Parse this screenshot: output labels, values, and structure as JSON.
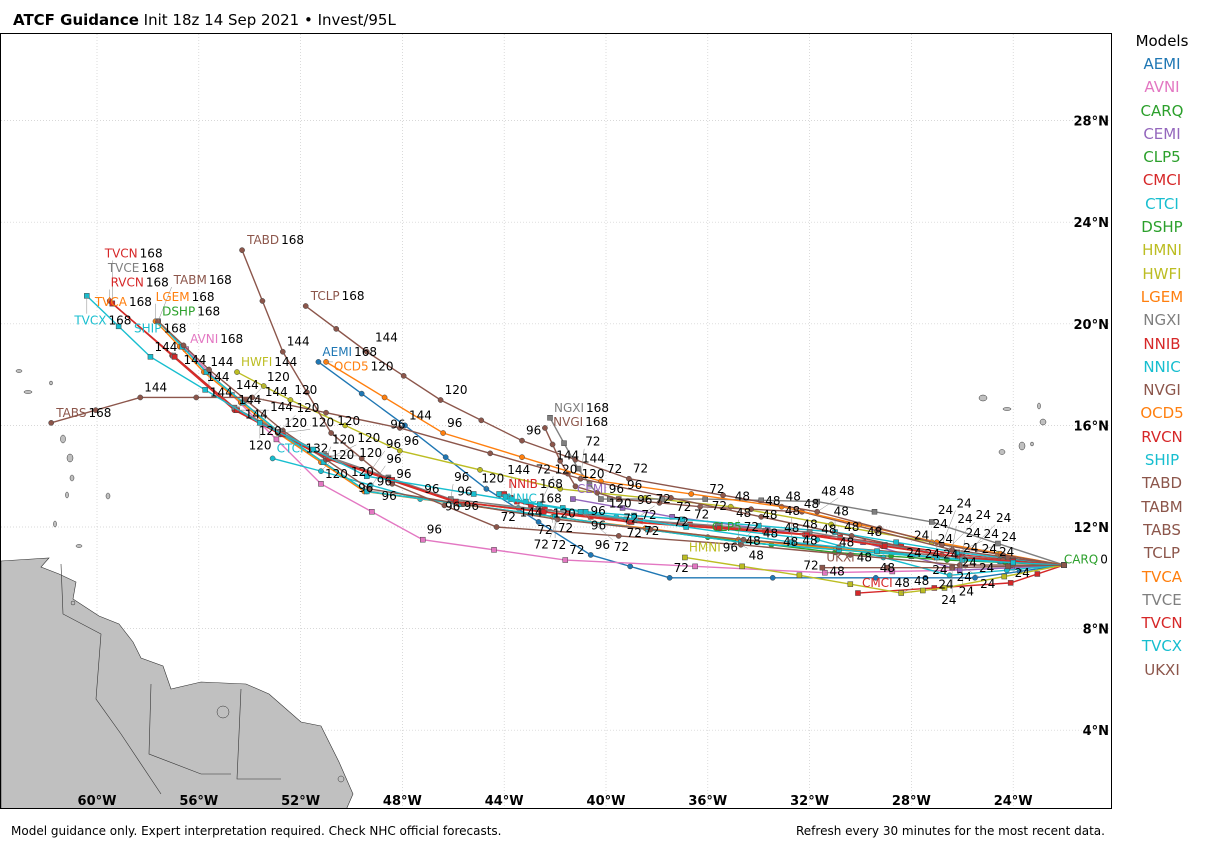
{
  "header": {
    "title": "ATCF Guidance",
    "subtitle": "Init 18z 14 Sep 2021 • Invest/95L"
  },
  "footer": {
    "left": "Model guidance only. Expert interpretation required. Check NHC official forecasts.",
    "right": "Refresh every 30 minutes for the most recent data."
  },
  "legend": {
    "title": "Models"
  },
  "axes": {
    "lon_ticks": [
      "60°W",
      "56°W",
      "52°W",
      "48°W",
      "44°W",
      "40°W",
      "36°W",
      "32°W",
      "28°W",
      "24°W"
    ],
    "lon_values": [
      -60,
      -56,
      -52,
      -48,
      -44,
      -40,
      -36,
      -32,
      -28,
      -24
    ],
    "lat_ticks": [
      "4°N",
      "8°N",
      "12°N",
      "16°N",
      "20°N",
      "24°N",
      "28°N"
    ],
    "lat_values": [
      4,
      8,
      12,
      16,
      20,
      24,
      28
    ],
    "lon_range": [
      -63.8,
      -20.1
    ],
    "lat_range": [
      0.9,
      31.4
    ]
  },
  "land_color": "#c0c0c0",
  "models": [
    {
      "name": "AEMI",
      "color": "#1f77b4",
      "marker": "circle",
      "track": [
        [
          0,
          10.5,
          -22.0
        ],
        [
          24,
          10.0,
          -25.5
        ],
        [
          48,
          10.0,
          -29.4
        ],
        [
          72,
          10.0,
          -37.5
        ],
        [
          96,
          10.9,
          -40.6
        ],
        [
          120,
          13.5,
          -44.7
        ],
        [
          144,
          16.0,
          -47.9
        ],
        [
          168,
          18.5,
          -51.3
        ]
      ]
    },
    {
      "name": "AVNI",
      "color": "#e377c2",
      "marker": "square",
      "track": [
        [
          0,
          10.5,
          -22.0
        ],
        [
          24,
          10.3,
          -26.1
        ],
        [
          48,
          10.2,
          -31.4
        ],
        [
          72,
          10.7,
          -41.6
        ],
        [
          96,
          11.5,
          -47.2
        ],
        [
          120,
          13.7,
          -51.2
        ],
        [
          144,
          17.2,
          -54.7
        ],
        [
          168,
          19.0,
          -56.5
        ]
      ]
    },
    {
      "name": "CARQ",
      "color": "#2ca02c",
      "marker": "square",
      "track": [
        [
          0,
          10.5,
          -22.0
        ]
      ]
    },
    {
      "name": "CEMI",
      "color": "#9467bd",
      "marker": "square",
      "track": [
        [
          0,
          10.5,
          -22.0
        ],
        [
          24,
          10.3,
          -26.1
        ],
        [
          48,
          11.4,
          -29.9
        ],
        [
          72,
          12.4,
          -37.4
        ],
        [
          96,
          13.1,
          -41.3
        ]
      ]
    },
    {
      "name": "CLP5",
      "color": "#2ca02c",
      "marker": "circle",
      "track": [
        [
          0,
          10.5,
          -22.0
        ],
        [
          24,
          10.7,
          -26.6
        ],
        [
          48,
          11.0,
          -31.0
        ],
        [
          72,
          11.6,
          -36.0
        ]
      ]
    },
    {
      "name": "CMCI",
      "color": "#d62728",
      "marker": "square",
      "track": [
        [
          0,
          10.5,
          -22.0
        ],
        [
          24,
          9.8,
          -24.1
        ],
        [
          48,
          9.4,
          -30.1
        ]
      ]
    },
    {
      "name": "CTCI",
      "color": "#17becf",
      "marker": "circle",
      "track": [
        [
          0,
          10.5,
          -22.0
        ],
        [
          24,
          10.1,
          -26.5
        ],
        [
          48,
          11.5,
          -31.7
        ],
        [
          72,
          12.4,
          -39.6
        ],
        [
          96,
          13.1,
          -47.3
        ],
        [
          120,
          14.2,
          -51.2
        ],
        [
          132,
          14.7,
          -53.1
        ]
      ]
    },
    {
      "name": "DSHP",
      "color": "#2ca02c",
      "marker": "circle",
      "track": [
        [
          0,
          10.5,
          -22.0
        ],
        [
          24,
          10.8,
          -27.0
        ],
        [
          48,
          11.4,
          -34.7
        ],
        [
          72,
          12.4,
          -42.0
        ],
        [
          96,
          13.4,
          -49.4
        ],
        [
          120,
          15.7,
          -52.8
        ],
        [
          144,
          18.1,
          -55.7
        ],
        [
          168,
          20.1,
          -57.6
        ]
      ]
    },
    {
      "name": "HMNI",
      "color": "#bcbd22",
      "marker": "square",
      "track": [
        [
          0,
          10.5,
          -22.0
        ],
        [
          24,
          9.6,
          -26.7
        ],
        [
          48,
          9.4,
          -28.4
        ],
        [
          72,
          10.1,
          -32.4
        ],
        [
          96,
          10.8,
          -36.9
        ]
      ]
    },
    {
      "name": "HWFI",
      "color": "#bcbd22",
      "marker": "circle",
      "track": [
        [
          0,
          10.5,
          -22.0
        ],
        [
          24,
          11.4,
          -27.2
        ],
        [
          48,
          12.8,
          -35.1
        ],
        [
          72,
          13.5,
          -41.8
        ],
        [
          96,
          15.0,
          -48.1
        ],
        [
          120,
          17.0,
          -52.4
        ],
        [
          144,
          18.1,
          -54.5
        ]
      ]
    },
    {
      "name": "LGEM",
      "color": "#ff7f0e",
      "marker": "circle",
      "track": [
        [
          0,
          10.5,
          -22.0
        ],
        [
          24,
          10.8,
          -27.1
        ],
        [
          48,
          11.5,
          -34.8
        ],
        [
          72,
          12.4,
          -42.1
        ],
        [
          96,
          13.4,
          -49.5
        ],
        [
          120,
          15.7,
          -52.9
        ],
        [
          144,
          18.1,
          -55.8
        ],
        [
          168,
          20.1,
          -57.7
        ]
      ]
    },
    {
      "name": "NGXI",
      "color": "#7f7f7f",
      "marker": "square",
      "track": [
        [
          0,
          10.5,
          -22.0
        ],
        [
          24,
          12.2,
          -27.2
        ],
        [
          48,
          13.0,
          -31.7
        ],
        [
          72,
          13.1,
          -36.1
        ],
        [
          96,
          13.1,
          -39.5
        ],
        [
          120,
          13.1,
          -40.2
        ],
        [
          144,
          14.3,
          -41.1
        ],
        [
          168,
          16.3,
          -42.2
        ]
      ]
    },
    {
      "name": "NNIB",
      "color": "#d62728",
      "marker": "square",
      "track": [
        [
          0,
          10.5,
          -22.0
        ],
        [
          24,
          10.9,
          -26.0
        ],
        [
          48,
          11.6,
          -30.8
        ],
        [
          72,
          12.1,
          -36.7
        ],
        [
          96,
          12.4,
          -40.6
        ],
        [
          120,
          12.7,
          -42.4
        ],
        [
          144,
          13.0,
          -43.5
        ],
        [
          168,
          13.3,
          -44.0
        ]
      ]
    },
    {
      "name": "NNIC",
      "color": "#17becf",
      "marker": "square",
      "track": [
        [
          0,
          10.5,
          -22.0
        ],
        [
          24,
          11.0,
          -26.2
        ],
        [
          48,
          11.8,
          -31.0
        ],
        [
          72,
          12.3,
          -37.0
        ],
        [
          96,
          12.6,
          -40.8
        ],
        [
          120,
          12.9,
          -42.6
        ],
        [
          144,
          13.1,
          -43.7
        ],
        [
          168,
          13.3,
          -44.2
        ]
      ]
    },
    {
      "name": "NVGI",
      "color": "#8c564b",
      "marker": "circle",
      "track": [
        [
          0,
          10.5,
          -22.0
        ],
        [
          24,
          11.1,
          -26.4
        ],
        [
          48,
          12.6,
          -32.3
        ],
        [
          72,
          12.8,
          -36.3
        ],
        [
          96,
          13.1,
          -39.5
        ],
        [
          120,
          13.6,
          -41.2
        ],
        [
          144,
          14.6,
          -41.8
        ],
        [
          168,
          15.9,
          -42.4
        ]
      ]
    },
    {
      "name": "OCD5",
      "color": "#ff7f0e",
      "marker": "circle",
      "track": [
        [
          0,
          10.5,
          -22.0
        ],
        [
          24,
          11.4,
          -27.0
        ],
        [
          48,
          12.8,
          -33.1
        ],
        [
          72,
          13.8,
          -40.2
        ],
        [
          96,
          15.7,
          -46.4
        ],
        [
          120,
          18.5,
          -51.0
        ]
      ]
    },
    {
      "name": "RVCN",
      "color": "#d62728",
      "marker": "circle",
      "track": [
        [
          0,
          10.5,
          -22.0
        ],
        [
          24,
          10.8,
          -26.1
        ],
        [
          48,
          11.7,
          -32.2
        ],
        [
          72,
          12.2,
          -39.1
        ],
        [
          96,
          13.0,
          -46.0
        ],
        [
          120,
          14.7,
          -51.0
        ],
        [
          144,
          16.6,
          -54.6
        ],
        [
          168,
          20.9,
          -59.5
        ]
      ]
    },
    {
      "name": "SHIP",
      "color": "#17becf",
      "marker": "square",
      "track": [
        [
          0,
          10.5,
          -22.0
        ],
        [
          24,
          10.8,
          -27.0
        ],
        [
          48,
          11.4,
          -34.7
        ],
        [
          72,
          12.4,
          -42.0
        ],
        [
          96,
          13.4,
          -49.4
        ],
        [
          120,
          15.7,
          -52.8
        ],
        [
          144,
          18.1,
          -55.7
        ],
        [
          168,
          20.1,
          -57.6
        ]
      ]
    },
    {
      "name": "TABD",
      "color": "#8c564b",
      "marker": "circle",
      "track": [
        [
          0,
          10.5,
          -22.0
        ],
        [
          24,
          10.5,
          -26.1
        ],
        [
          48,
          11.3,
          -34.7
        ],
        [
          72,
          12.0,
          -44.3
        ],
        [
          96,
          13.7,
          -48.4
        ],
        [
          120,
          15.7,
          -50.8
        ],
        [
          144,
          18.9,
          -52.7
        ],
        [
          168,
          22.9,
          -54.3
        ]
      ]
    },
    {
      "name": "TABM",
      "color": "#8c564b",
      "marker": "circle",
      "track": [
        [
          0,
          10.5,
          -22.0
        ],
        [
          24,
          10.9,
          -27.1
        ],
        [
          48,
          11.5,
          -34.6
        ],
        [
          72,
          12.3,
          -41.9
        ],
        [
          96,
          13.5,
          -49.3
        ],
        [
          120,
          15.8,
          -52.7
        ],
        [
          144,
          18.2,
          -55.6
        ],
        [
          168,
          20.1,
          -57.6
        ]
      ]
    },
    {
      "name": "TABS",
      "color": "#8c564b",
      "marker": "circle",
      "track": [
        [
          0,
          10.5,
          -22.0
        ],
        [
          24,
          10.9,
          -26.8
        ],
        [
          48,
          12.4,
          -33.9
        ],
        [
          72,
          13.9,
          -41.0
        ],
        [
          96,
          15.9,
          -48.1
        ],
        [
          120,
          17.1,
          -53.9
        ],
        [
          144,
          17.1,
          -58.3
        ],
        [
          168,
          16.1,
          -61.8
        ]
      ]
    },
    {
      "name": "TCLP",
      "color": "#8c564b",
      "marker": "circle",
      "track": [
        [
          0,
          10.5,
          -22.0
        ],
        [
          24,
          11.3,
          -26.8
        ],
        [
          48,
          12.6,
          -31.7
        ],
        [
          72,
          13.9,
          -39.1
        ],
        [
          96,
          15.4,
          -43.3
        ],
        [
          120,
          17.0,
          -46.5
        ],
        [
          144,
          18.9,
          -49.4
        ],
        [
          168,
          20.7,
          -51.8
        ]
      ]
    },
    {
      "name": "TVCA",
      "color": "#ff7f0e",
      "marker": "square",
      "track": [
        [
          0,
          10.5,
          -22.0
        ],
        [
          24,
          10.8,
          -26.0
        ],
        [
          48,
          11.7,
          -32.1
        ],
        [
          72,
          12.2,
          -39.0
        ],
        [
          96,
          13.0,
          -45.9
        ],
        [
          120,
          14.7,
          -50.9
        ],
        [
          144,
          16.6,
          -54.5
        ],
        [
          168,
          20.8,
          -59.4
        ]
      ]
    },
    {
      "name": "TVCE",
      "color": "#7f7f7f",
      "marker": "square",
      "track": [
        [
          0,
          10.5,
          -22.0
        ],
        [
          24,
          10.8,
          -26.1
        ],
        [
          48,
          11.8,
          -32.0
        ],
        [
          72,
          12.3,
          -39.2
        ],
        [
          96,
          13.1,
          -46.1
        ],
        [
          120,
          14.8,
          -51.0
        ],
        [
          144,
          16.7,
          -54.6
        ],
        [
          168,
          20.8,
          -59.4
        ]
      ]
    },
    {
      "name": "TVCN",
      "color": "#d62728",
      "marker": "square",
      "track": [
        [
          0,
          10.5,
          -22.0
        ],
        [
          24,
          10.8,
          -26.0
        ],
        [
          48,
          11.7,
          -32.1
        ],
        [
          72,
          12.2,
          -39.0
        ],
        [
          96,
          13.0,
          -45.9
        ],
        [
          120,
          14.7,
          -50.9
        ],
        [
          144,
          16.6,
          -54.5
        ],
        [
          168,
          20.8,
          -59.4
        ]
      ]
    },
    {
      "name": "TVCX",
      "color": "#17becf",
      "marker": "square",
      "track": [
        [
          0,
          10.5,
          -22.0
        ],
        [
          24,
          10.7,
          -26.0
        ],
        [
          48,
          11.4,
          -32.7
        ],
        [
          72,
          12.6,
          -41.0
        ],
        [
          96,
          14.0,
          -49.4
        ],
        [
          120,
          16.1,
          -53.6
        ],
        [
          144,
          18.7,
          -57.9
        ],
        [
          168,
          21.1,
          -60.4
        ]
      ]
    },
    {
      "name": "UKXI",
      "color": "#8c564b",
      "marker": "square",
      "track": [
        [
          0,
          10.5,
          -22.0
        ],
        [
          24,
          10.4,
          -26.4
        ],
        [
          48,
          10.4,
          -31.5
        ]
      ]
    }
  ]
}
